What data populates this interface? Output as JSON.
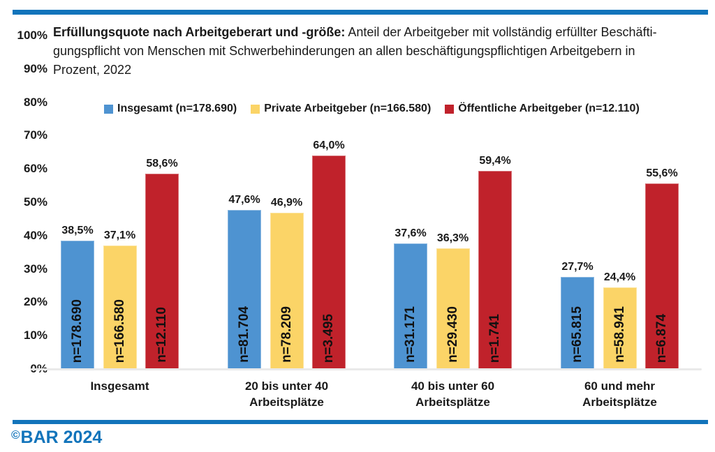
{
  "colors": {
    "brand_blue": "#1274BB",
    "bar_blue": "#4E93D1",
    "bar_yellow": "#FBD467",
    "bar_red": "#C0222B",
    "axis_line": "#E9E9E9",
    "text": "#1A1A1A"
  },
  "title": {
    "bold": "Erfüllungsquote nach Arbeitgeberart und -größe:",
    "line1_rest": " Anteil der Arbeitgeber mit vollständig erfüllter Beschäfti-",
    "line2": "gungspflicht von Menschen mit Schwerbehinderungen an allen beschäftigungspflichtigen Arbeitgebern in",
    "line3": "Prozent, 2022"
  },
  "footer": {
    "copyright_symbol": "©",
    "text": "BAR 2024"
  },
  "chart_data": {
    "type": "bar",
    "title": "Erfüllungsquote nach Arbeitgeberart und -größe: Anteil der Arbeitgeber mit vollständig erfüllter Beschäftigungspflicht von Menschen mit Schwerbehinderungen an allen beschäftigungspflichtigen Arbeitgebern in Prozent, 2022",
    "categories": [
      "Insgesamt",
      "20 bis unter 40\nArbeitsplätze",
      "40 bis unter 60\nArbeitsplätze",
      "60 und mehr\nArbeitsplätze"
    ],
    "series": [
      {
        "name": "Insgesamt (n=178.690)",
        "color_key": "bar_blue",
        "values": [
          38.5,
          47.6,
          37.6,
          27.7
        ],
        "value_labels": [
          "38,5%",
          "47,6%",
          "37,6%",
          "27,7%"
        ],
        "n_labels": [
          "n=178.690",
          "n=81.704",
          "n=31.171",
          "n=65.815"
        ]
      },
      {
        "name": "Private Arbeitgeber (n=166.580)",
        "color_key": "bar_yellow",
        "values": [
          37.1,
          46.9,
          36.3,
          24.4
        ],
        "value_labels": [
          "37,1%",
          "46,9%",
          "36,3%",
          "24,4%"
        ],
        "n_labels": [
          "n=166.580",
          "n=78.209",
          "n=29.430",
          "n=58.941"
        ]
      },
      {
        "name": "Öffentliche Arbeitgeber (n=12.110)",
        "color_key": "bar_red",
        "values": [
          58.6,
          64.0,
          59.4,
          55.6
        ],
        "value_labels": [
          "58,6%",
          "64,0%",
          "59,4%",
          "55,6%"
        ],
        "n_labels": [
          "n=12.110",
          "n=3.495",
          "n=1.741",
          "n=6.874"
        ]
      }
    ],
    "ylim": [
      0,
      100
    ],
    "yticks": [
      "0%",
      "10%",
      "20%",
      "30%",
      "40%",
      "50%",
      "60%",
      "70%",
      "80%",
      "90%",
      "100%"
    ],
    "grid": false,
    "legend_position": "top"
  }
}
